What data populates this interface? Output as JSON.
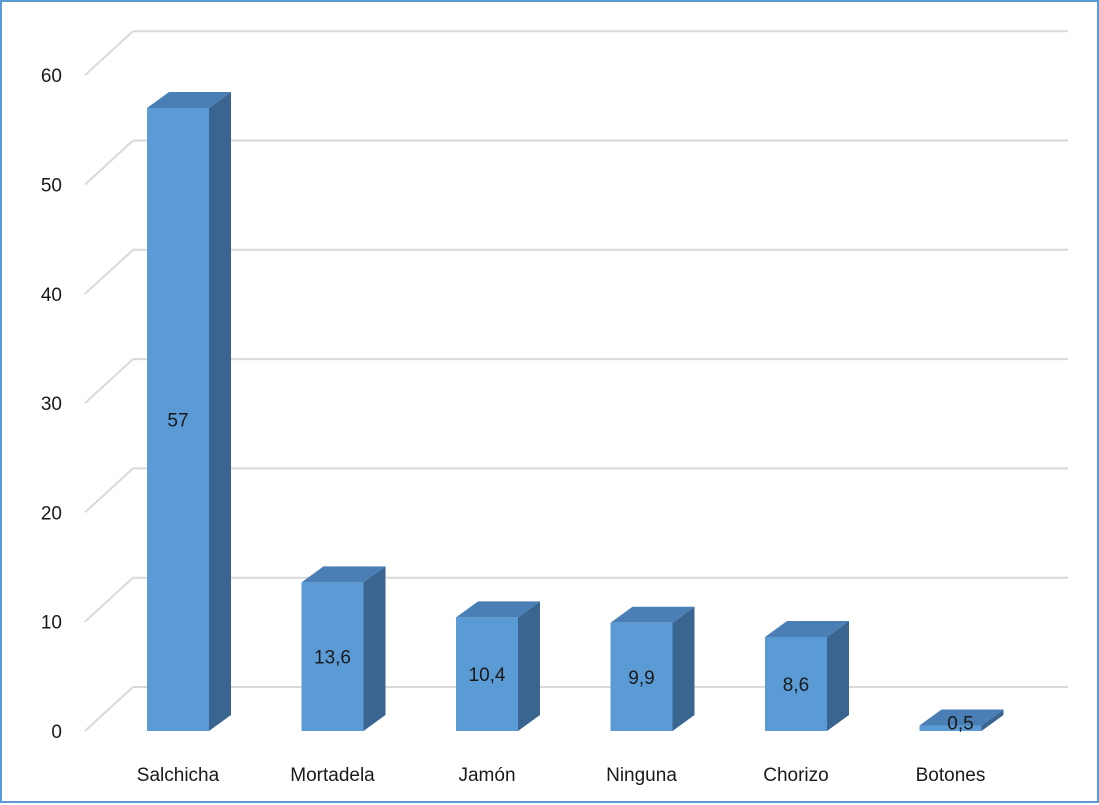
{
  "chart_data": {
    "type": "bar",
    "style": "3d-column",
    "categories": [
      "Salchicha",
      "Mortadela",
      "Jamón",
      "Ninguna",
      "Chorizo",
      "Botones"
    ],
    "values": [
      57,
      13.6,
      10.4,
      9.9,
      8.6,
      0.5
    ],
    "data_labels": [
      "57",
      "13,6",
      "10,4",
      "9,9",
      "8,6",
      "0,5"
    ],
    "yticks": [
      "0",
      "10",
      "20",
      "30",
      "40",
      "50",
      "60"
    ],
    "ylim": [
      0,
      60
    ],
    "grid": true,
    "legend": "none",
    "colors": {
      "bar_front": "#5b9bd5",
      "bar_side": "#3a6590",
      "bar_top": "#4a7fb5",
      "grid": "#d9d9d9",
      "border": "#5b9bd5"
    }
  }
}
